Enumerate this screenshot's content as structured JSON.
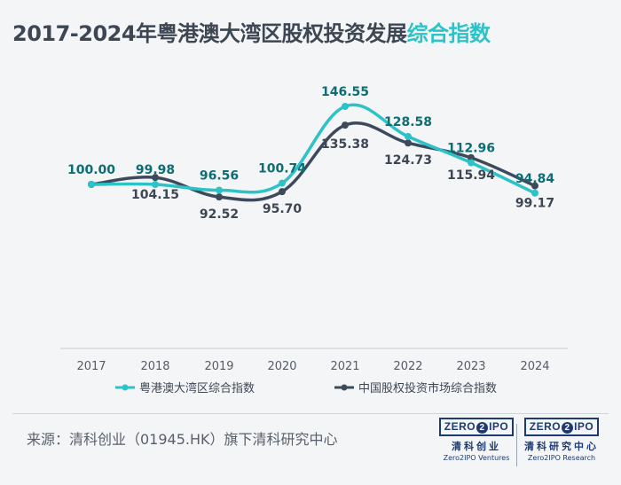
{
  "title": {
    "main": "2017-2024年粤港澳大湾区股权投资发展",
    "accent": "综合指数"
  },
  "chart_data": {
    "type": "line",
    "title": "2017-2024年粤港澳大湾区股权投资发展综合指数",
    "categories": [
      "2017",
      "2018",
      "2019",
      "2020",
      "2021",
      "2022",
      "2023",
      "2024"
    ],
    "series": [
      {
        "name": "粤港澳大湾区综合指数",
        "color": "#2cc3c8",
        "values": [
          100.0,
          99.98,
          96.56,
          100.74,
          146.55,
          128.58,
          112.96,
          94.84
        ],
        "labels": [
          "100.00",
          "99.98",
          "96.56",
          "100.74",
          "146.55",
          "128.58",
          "112.96",
          "94.84"
        ]
      },
      {
        "name": "中国股权投资市场综合指数",
        "color": "#3d4a5c",
        "values": [
          100.0,
          104.15,
          92.52,
          95.7,
          135.38,
          124.73,
          115.94,
          99.17
        ],
        "labels": [
          "",
          "104.15",
          "92.52",
          "95.70",
          "135.38",
          "124.73",
          "115.94",
          "99.17"
        ]
      }
    ],
    "ylim": [
      0,
      160
    ],
    "grid": false,
    "legend_position": "bottom"
  },
  "footer": {
    "source": "来源：清科创业（01945.HK）旗下清科研究中心"
  },
  "logos": [
    {
      "mark_left": "ZERO",
      "mark_mid": "2",
      "mark_right": "IPO",
      "cn": "清科创业",
      "en": "Zero2IPO Ventures"
    },
    {
      "mark_left": "ZERO",
      "mark_mid": "2",
      "mark_right": "IPO",
      "cn": "清科研究中心",
      "en": "Zero2IPO Research"
    }
  ]
}
